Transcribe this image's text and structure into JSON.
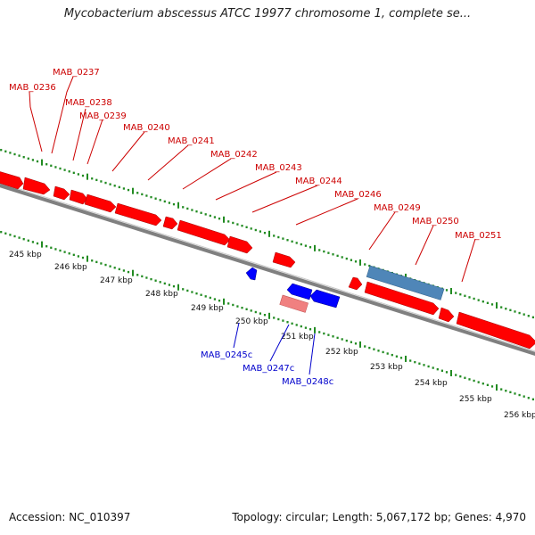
{
  "header": {
    "title": "Mycobacterium abscessus ATCC 19977 chromosome 1, complete se..."
  },
  "footer": {
    "accession": "Accession: NC_010397",
    "summary": "Topology: circular; Length: 5,067,172 bp; Genes: 4,970"
  },
  "colors": {
    "forward_gene": "#ff0000",
    "reverse_gene": "#0000ff",
    "forward_label": "#cc0000",
    "reverse_label": "#0000cc",
    "highlight_forward": "#f08080",
    "highlight_reverse": "#4f86b8",
    "backbone": "#808080",
    "ticks": "#228b22"
  },
  "scale": {
    "ticks": [
      {
        "label": "245 kbp"
      },
      {
        "label": "246 kbp"
      },
      {
        "label": "247 kbp"
      },
      {
        "label": "248 kbp"
      },
      {
        "label": "249 kbp"
      },
      {
        "label": "250 kbp"
      },
      {
        "label": "251 kbp"
      },
      {
        "label": "252 kbp"
      },
      {
        "label": "253 kbp"
      },
      {
        "label": "254 kbp"
      },
      {
        "label": "255 kbp"
      },
      {
        "label": "256 kbp"
      }
    ]
  },
  "genes": {
    "forward": [
      {
        "label": "MAB_0236"
      },
      {
        "label": "MAB_0237"
      },
      {
        "label": "MAB_0238"
      },
      {
        "label": "MAB_0239"
      },
      {
        "label": "MAB_0240"
      },
      {
        "label": "MAB_0241"
      },
      {
        "label": "MAB_0242"
      },
      {
        "label": "MAB_0243"
      },
      {
        "label": "MAB_0244"
      },
      {
        "label": "MAB_0246"
      },
      {
        "label": "MAB_0249"
      },
      {
        "label": "MAB_0250"
      },
      {
        "label": "MAB_0251"
      }
    ],
    "reverse": [
      {
        "label": "MAB_0245c"
      },
      {
        "label": "MAB_0247c"
      },
      {
        "label": "MAB_0248c"
      }
    ]
  }
}
